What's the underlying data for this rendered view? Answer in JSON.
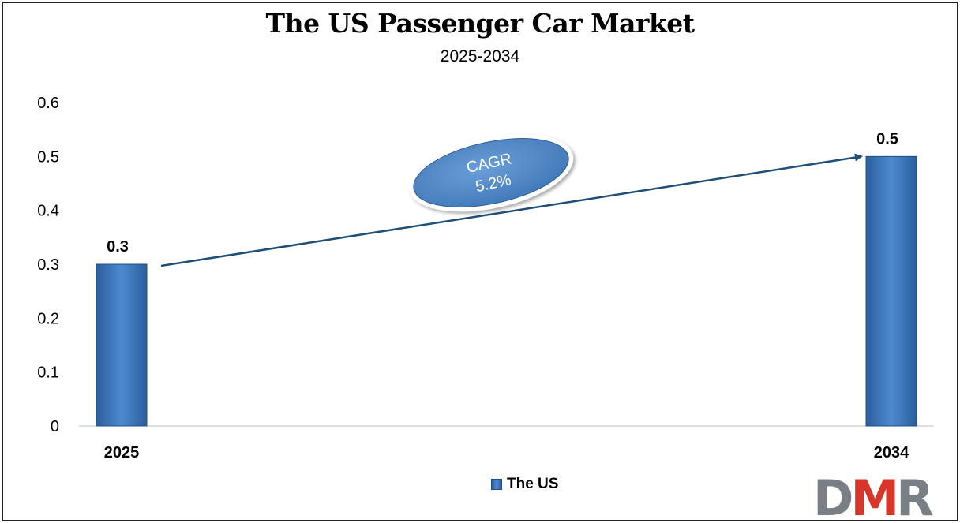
{
  "chart_data": {
    "type": "bar",
    "title": "The US Passenger Car Market",
    "subtitle": "2025-2034",
    "categories": [
      "2025",
      "2034"
    ],
    "series": [
      {
        "name": "The US",
        "values": [
          0.3,
          0.5
        ]
      }
    ],
    "data_labels": [
      "0.3",
      "0.5"
    ],
    "ylim": [
      0,
      0.6
    ],
    "yticks": [
      "0",
      "0.1",
      "0.2",
      "0.3",
      "0.4",
      "0.5",
      "0.6"
    ],
    "grid": false,
    "legend": "bottom-center",
    "annotation": {
      "label": "CAGR",
      "value": "5.2%"
    },
    "bar_color": "#3f7cc4"
  },
  "logo": {
    "text": "DMR"
  }
}
